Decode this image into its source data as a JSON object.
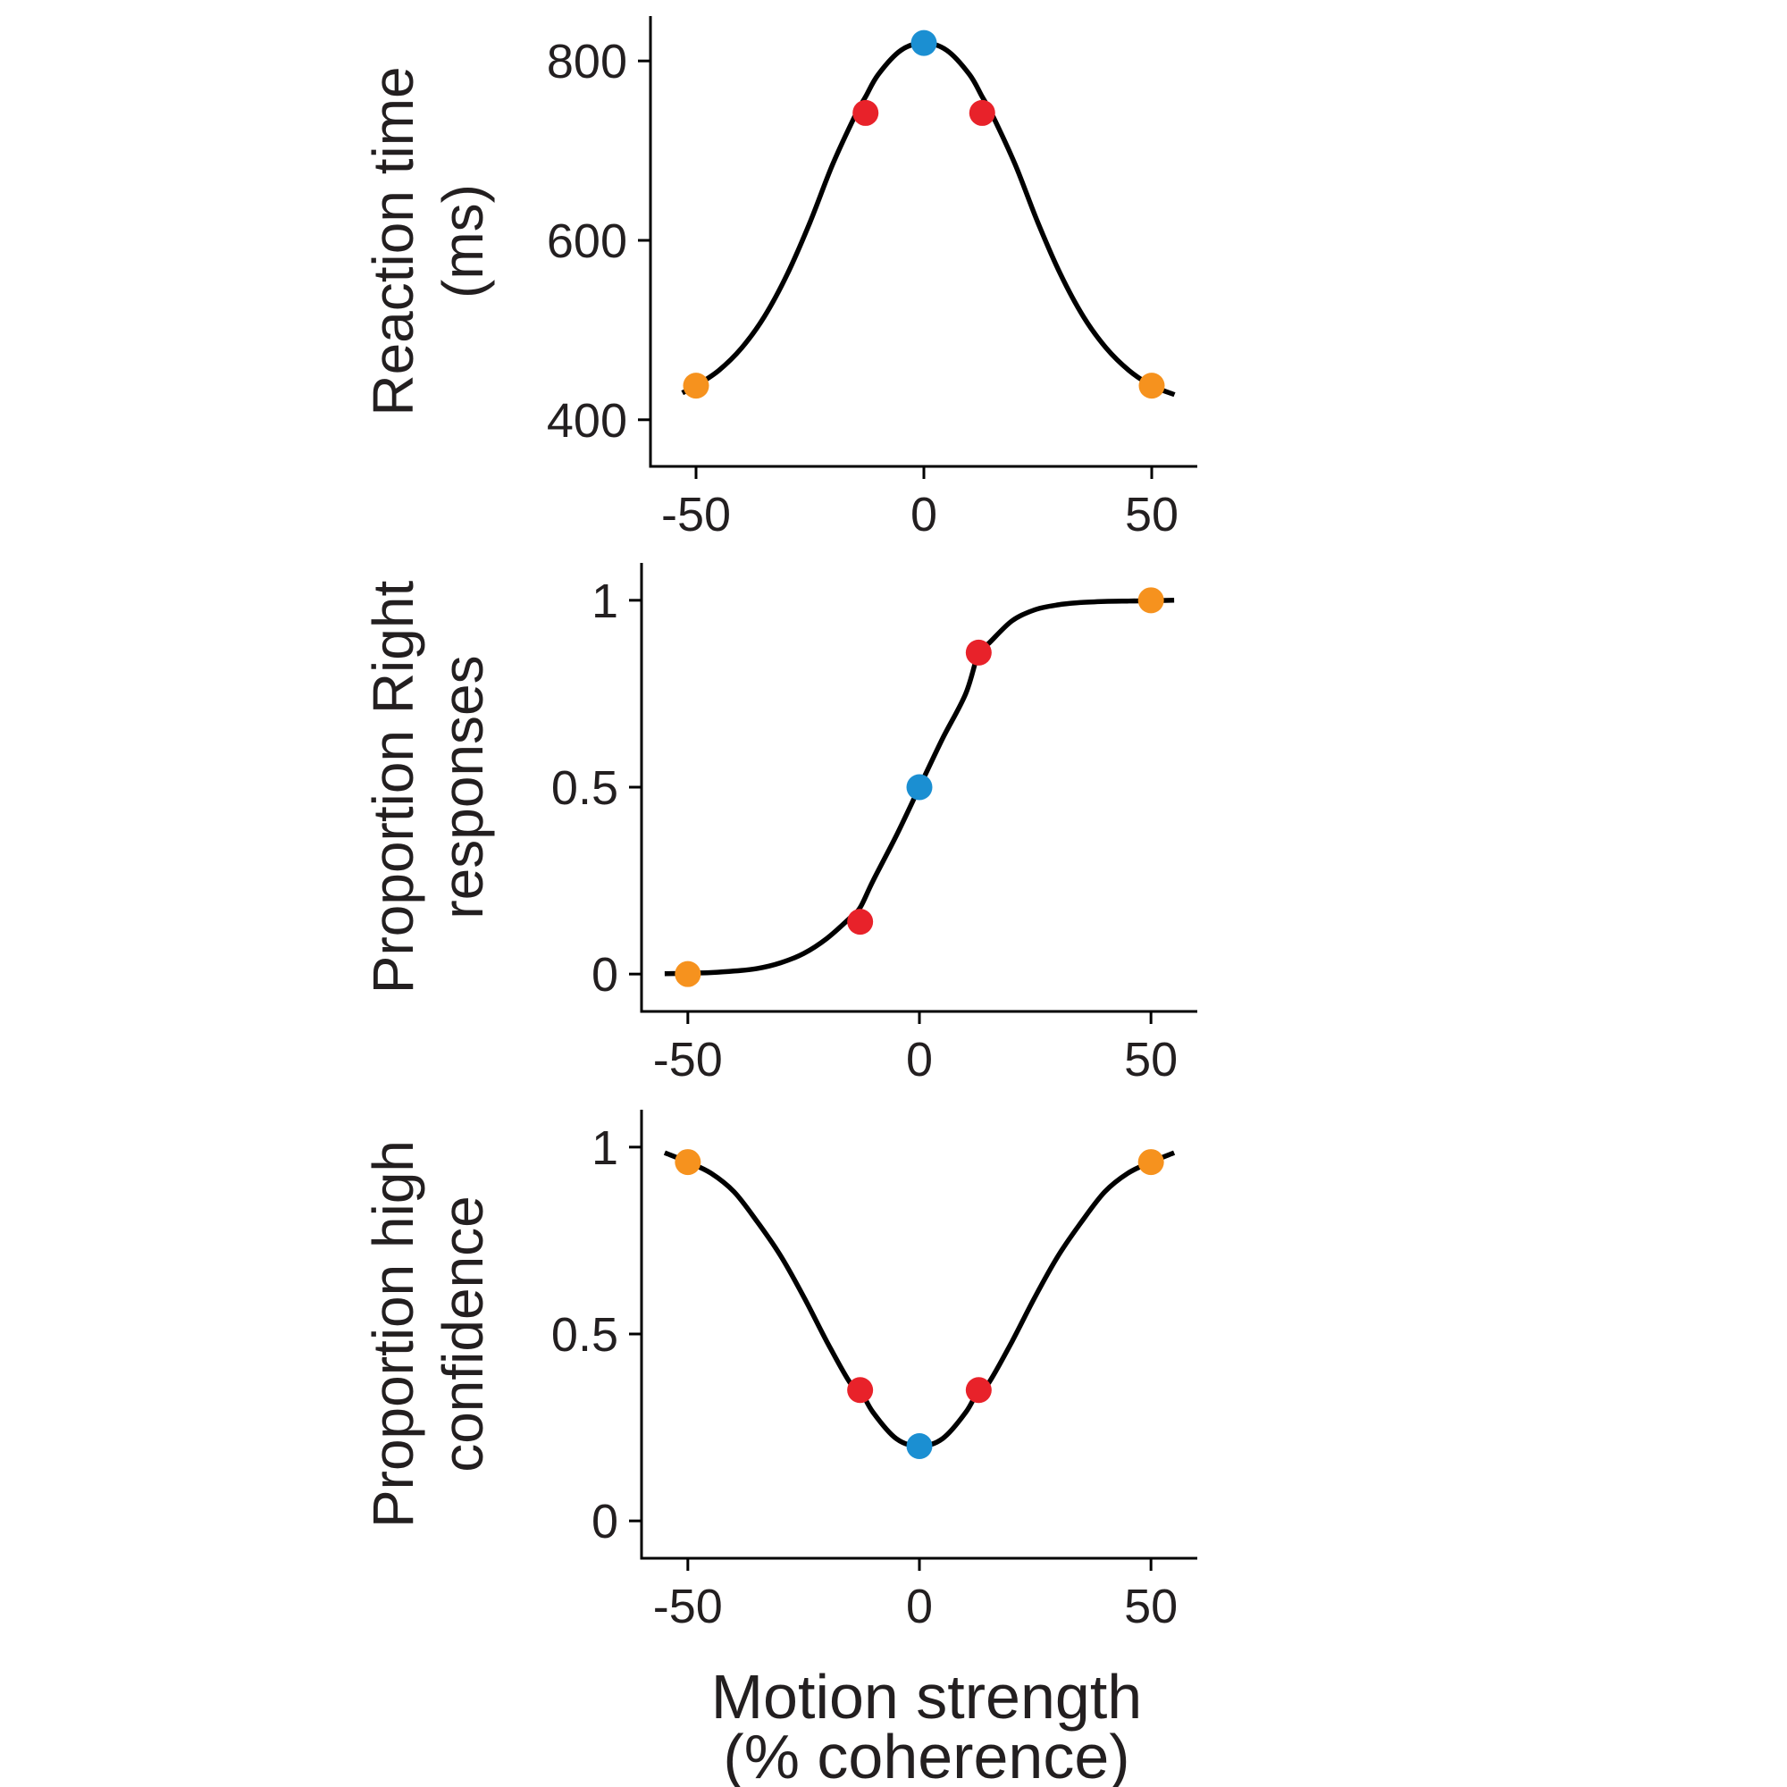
{
  "colors": {
    "curve": "#000000",
    "axis": "#000000",
    "text": "#231f20",
    "zero_coherence": "#1b8fd2",
    "low_coherence": "#e8222a",
    "high_coherence": "#f6921e"
  },
  "x_axis_label": {
    "line1": "Motion strength",
    "line2": "(% coherence)"
  },
  "chart_data": [
    {
      "type": "line",
      "ylabel_lines": [
        "Reaction time",
        "(ms)"
      ],
      "xlim": [
        -60,
        60
      ],
      "ylim": [
        348,
        850
      ],
      "xticks": [
        -50,
        0,
        50
      ],
      "xtick_labels": [
        "-50",
        "0",
        "50"
      ],
      "yticks": [
        400,
        600,
        800
      ],
      "ytick_labels": [
        "400",
        "600",
        "800"
      ],
      "curve": {
        "x": [
          -53,
          -50,
          -45,
          -40,
          -35,
          -30,
          -25,
          -20,
          -15,
          -12.8,
          -10,
          -5,
          0,
          5,
          10,
          12.8,
          15,
          20,
          25,
          30,
          35,
          40,
          45,
          50,
          55
        ],
        "y": [
          430,
          438,
          455,
          480,
          515,
          562,
          620,
          685,
          740,
          760,
          785,
          812,
          820,
          812,
          785,
          760,
          740,
          685,
          620,
          562,
          515,
          480,
          455,
          438,
          428
        ]
      },
      "points": [
        {
          "x": -50,
          "y": 438,
          "color_key": "high_coherence"
        },
        {
          "x": -12.8,
          "y": 742,
          "color_key": "low_coherence"
        },
        {
          "x": 0,
          "y": 820,
          "color_key": "zero_coherence"
        },
        {
          "x": 12.8,
          "y": 742,
          "color_key": "low_coherence"
        },
        {
          "x": 50,
          "y": 438,
          "color_key": "high_coherence"
        }
      ]
    },
    {
      "type": "line",
      "ylabel_lines": [
        "Proportion Right",
        "responses"
      ],
      "xlim": [
        -60,
        60
      ],
      "ylim": [
        -0.1,
        1.1
      ],
      "xticks": [
        -50,
        0,
        50
      ],
      "xtick_labels": [
        "-50",
        "0",
        "50"
      ],
      "yticks": [
        0,
        0.5,
        1
      ],
      "ytick_labels": [
        "0",
        "0.5",
        "1"
      ],
      "curve": {
        "x": [
          -55,
          -50,
          -45,
          -40,
          -35,
          -30,
          -25,
          -20,
          -15,
          -12.8,
          -10,
          -5,
          0,
          5,
          10,
          12.8,
          15,
          20,
          25,
          30,
          35,
          40,
          45,
          50,
          55
        ],
        "y": [
          0.001,
          0.002,
          0.004,
          0.008,
          0.015,
          0.03,
          0.055,
          0.095,
          0.15,
          0.178,
          0.25,
          0.37,
          0.5,
          0.63,
          0.75,
          0.86,
          0.885,
          0.945,
          0.975,
          0.988,
          0.994,
          0.997,
          0.998,
          0.999,
          1.0
        ]
      },
      "points": [
        {
          "x": -50,
          "y": 0.0,
          "color_key": "high_coherence"
        },
        {
          "x": -12.8,
          "y": 0.14,
          "color_key": "low_coherence"
        },
        {
          "x": 0,
          "y": 0.5,
          "color_key": "zero_coherence"
        },
        {
          "x": 12.8,
          "y": 0.86,
          "color_key": "low_coherence"
        },
        {
          "x": 50,
          "y": 1.0,
          "color_key": "high_coherence"
        }
      ]
    },
    {
      "type": "line",
      "ylabel_lines": [
        "Proportion high",
        "confidence"
      ],
      "xlim": [
        -60,
        60
      ],
      "ylim": [
        -0.1,
        1.1
      ],
      "xticks": [
        -50,
        0,
        50
      ],
      "xtick_labels": [
        "-50",
        "0",
        "50"
      ],
      "yticks": [
        0,
        0.5,
        1
      ],
      "ytick_labels": [
        "0",
        "0.5",
        "1"
      ],
      "curve": {
        "x": [
          -55,
          -50,
          -45,
          -40,
          -35,
          -30,
          -25,
          -20,
          -15,
          -12.8,
          -10,
          -5,
          0,
          5,
          10,
          12.8,
          15,
          20,
          25,
          30,
          35,
          40,
          45,
          50,
          55
        ],
        "y": [
          0.985,
          0.96,
          0.93,
          0.88,
          0.8,
          0.71,
          0.6,
          0.48,
          0.37,
          0.35,
          0.29,
          0.22,
          0.2,
          0.22,
          0.29,
          0.35,
          0.37,
          0.48,
          0.6,
          0.71,
          0.8,
          0.88,
          0.93,
          0.96,
          0.985
        ]
      },
      "points": [
        {
          "x": -50,
          "y": 0.96,
          "color_key": "high_coherence"
        },
        {
          "x": -12.8,
          "y": 0.35,
          "color_key": "low_coherence"
        },
        {
          "x": 0,
          "y": 0.2,
          "color_key": "zero_coherence"
        },
        {
          "x": 12.8,
          "y": 0.35,
          "color_key": "low_coherence"
        },
        {
          "x": 50,
          "y": 0.96,
          "color_key": "high_coherence"
        }
      ]
    }
  ]
}
